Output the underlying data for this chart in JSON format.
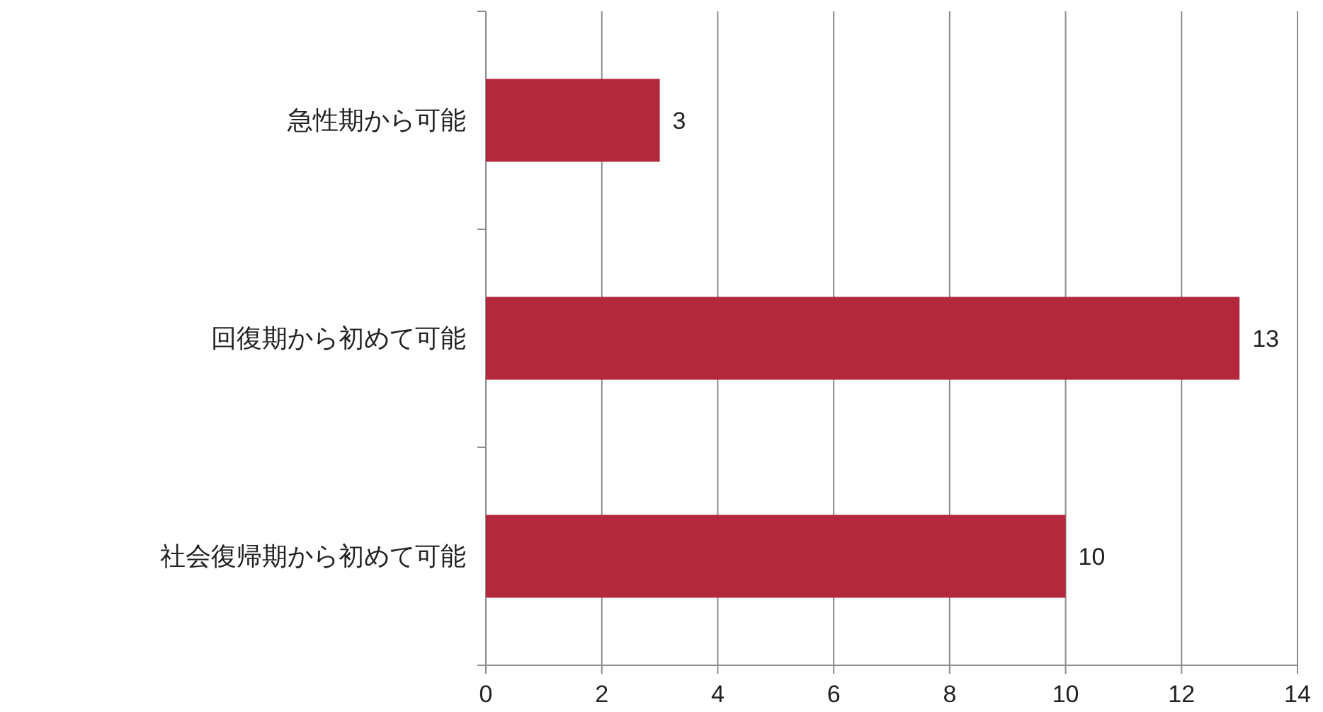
{
  "chart_data": {
    "type": "bar",
    "orientation": "horizontal",
    "categories": [
      "急性期から可能",
      "回復期から初めて可能",
      "社会復帰期から初めて可能"
    ],
    "values": [
      3,
      13,
      10
    ],
    "color": "#b3283c",
    "xlim": [
      0,
      14
    ],
    "xticks": [
      0,
      2,
      4,
      6,
      8,
      10,
      12,
      14
    ],
    "grid": "x",
    "data_labels": true
  }
}
